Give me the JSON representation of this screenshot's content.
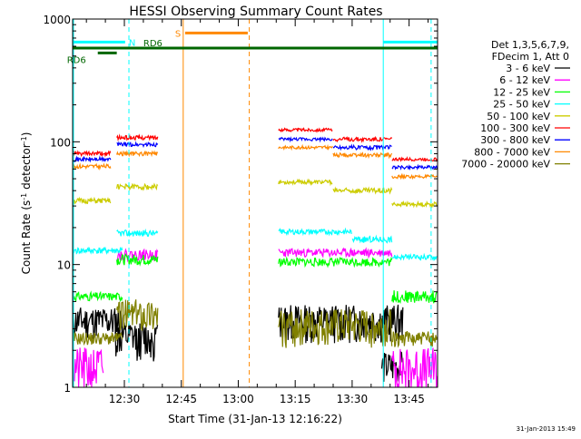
{
  "chart_data": {
    "type": "line",
    "title": "HESSI Observing Summary Count Rates",
    "xlabel": "Start Time (31-Jan-13 12:16:22)",
    "ylabel": "Count Rate (s⁻¹ detector⁻¹)",
    "ylabel_parts": [
      "Count Rate (s",
      "-1",
      " detector",
      "-1",
      ")"
    ],
    "y_scale": "log",
    "ylim": [
      1,
      1000
    ],
    "xlim_minutes": [
      16.37,
      112.5
    ],
    "xticks": [
      {
        "label": "12:30",
        "t": 30
      },
      {
        "label": "12:45",
        "t": 45
      },
      {
        "label": "13:00",
        "t": 60
      },
      {
        "label": "13:15",
        "t": 75
      },
      {
        "label": "13:30",
        "t": 90
      },
      {
        "label": "13:45",
        "t": 105
      }
    ],
    "yticks": [
      {
        "label": "1",
        "v": 1
      },
      {
        "label": "10",
        "v": 10
      },
      {
        "label": "100",
        "v": 100
      },
      {
        "label": "1000",
        "v": 1000
      }
    ],
    "legend_header": [
      "Det 1,3,5,6,7,9,",
      "FDecim 1, Att 0"
    ],
    "legend_position": "right",
    "footer": "31-Jan-2013 15:49",
    "series": [
      {
        "name": "3 - 6 keV",
        "color": "#000000",
        "segments": [
          {
            "t0": 16.5,
            "t1": 29.5,
            "v": 3.5,
            "jitter": 0.3,
            "seed": 11
          },
          {
            "t0": 27.6,
            "t1": 38.8,
            "v": 2.5,
            "jitter": 0.35,
            "seed": 12
          },
          {
            "t0": 70.6,
            "t1": 103.5,
            "v": 3.5,
            "jitter": 0.35,
            "seed": 13
          },
          {
            "t0": 97.8,
            "t1": 103.3,
            "v": 1.5,
            "jitter": 0.3,
            "seed": 14
          }
        ]
      },
      {
        "name": "6 - 12 keV",
        "color": "#ff00ff",
        "segments": [
          {
            "t0": 16.5,
            "t1": 24.5,
            "v": 1.45,
            "jitter": 0.45,
            "seed": 21
          },
          {
            "t0": 28.0,
            "t1": 38.8,
            "v": 12,
            "jitter": 0.1,
            "seed": 22
          },
          {
            "t0": 70.6,
            "t1": 100.5,
            "v": 12.5,
            "jitter": 0.08,
            "seed": 23
          },
          {
            "t0": 100.5,
            "t1": 112.5,
            "v": 1.45,
            "jitter": 0.45,
            "seed": 24
          }
        ]
      },
      {
        "name": "12 - 25 keV",
        "color": "#00ff00",
        "segments": [
          {
            "t0": 16.5,
            "t1": 29.5,
            "v": 5.5,
            "jitter": 0.08,
            "seed": 31
          },
          {
            "t0": 28.0,
            "t1": 38.8,
            "v": 11,
            "jitter": 0.1,
            "seed": 32
          },
          {
            "t0": 70.6,
            "t1": 100.5,
            "v": 10.5,
            "jitter": 0.08,
            "seed": 33
          },
          {
            "t0": 100.5,
            "t1": 112.5,
            "v": 5.5,
            "jitter": 0.12,
            "seed": 34
          }
        ]
      },
      {
        "name": "25 - 50 keV",
        "color": "#00ffff",
        "segments": [
          {
            "t0": 16.5,
            "t1": 29.5,
            "v": 13,
            "jitter": 0.06,
            "seed": 41
          },
          {
            "t0": 28.0,
            "t1": 38.8,
            "v": 18,
            "jitter": 0.06,
            "seed": 42
          },
          {
            "t0": 70.6,
            "t1": 90.0,
            "v": 18.5,
            "jitter": 0.05,
            "seed": 43
          },
          {
            "t0": 90.0,
            "t1": 100.5,
            "v": 16,
            "jitter": 0.06,
            "seed": 44
          },
          {
            "t0": 100.5,
            "t1": 112.5,
            "v": 11.5,
            "jitter": 0.05,
            "seed": 45
          }
        ]
      },
      {
        "name": "50 - 100 keV",
        "color": "#cccc00",
        "segments": [
          {
            "t0": 16.5,
            "t1": 26.5,
            "v": 33,
            "jitter": 0.05,
            "seed": 51
          },
          {
            "t0": 28.0,
            "t1": 38.8,
            "v": 43,
            "jitter": 0.05,
            "seed": 52
          },
          {
            "t0": 70.6,
            "t1": 85.0,
            "v": 47,
            "jitter": 0.04,
            "seed": 53
          },
          {
            "t0": 85.0,
            "t1": 100.5,
            "v": 40,
            "jitter": 0.05,
            "seed": 54
          },
          {
            "t0": 100.5,
            "t1": 112.5,
            "v": 31,
            "jitter": 0.04,
            "seed": 55
          }
        ]
      },
      {
        "name": "100 - 300 keV",
        "color": "#ff0000",
        "segments": [
          {
            "t0": 16.5,
            "t1": 26.5,
            "v": 80,
            "jitter": 0.04,
            "seed": 61
          },
          {
            "t0": 28.0,
            "t1": 38.8,
            "v": 108,
            "jitter": 0.04,
            "seed": 62
          },
          {
            "t0": 70.6,
            "t1": 85.0,
            "v": 125,
            "jitter": 0.03,
            "seed": 63
          },
          {
            "t0": 85.0,
            "t1": 100.5,
            "v": 105,
            "jitter": 0.04,
            "seed": 64
          },
          {
            "t0": 100.5,
            "t1": 112.5,
            "v": 72,
            "jitter": 0.03,
            "seed": 65
          }
        ]
      },
      {
        "name": "300 - 800 keV",
        "color": "#0000ff",
        "segments": [
          {
            "t0": 16.5,
            "t1": 26.5,
            "v": 72,
            "jitter": 0.04,
            "seed": 71
          },
          {
            "t0": 28.0,
            "t1": 38.8,
            "v": 95,
            "jitter": 0.04,
            "seed": 72
          },
          {
            "t0": 70.6,
            "t1": 85.0,
            "v": 105,
            "jitter": 0.03,
            "seed": 73
          },
          {
            "t0": 85.0,
            "t1": 100.5,
            "v": 90,
            "jitter": 0.04,
            "seed": 74
          },
          {
            "t0": 100.5,
            "t1": 112.5,
            "v": 62,
            "jitter": 0.03,
            "seed": 75
          }
        ]
      },
      {
        "name": "800 - 7000 keV",
        "color": "#ff8800",
        "segments": [
          {
            "t0": 16.5,
            "t1": 26.5,
            "v": 63,
            "jitter": 0.04,
            "seed": 81
          },
          {
            "t0": 28.0,
            "t1": 38.8,
            "v": 80,
            "jitter": 0.04,
            "seed": 82
          },
          {
            "t0": 70.6,
            "t1": 85.0,
            "v": 90,
            "jitter": 0.03,
            "seed": 83
          },
          {
            "t0": 85.0,
            "t1": 100.5,
            "v": 78,
            "jitter": 0.04,
            "seed": 84
          },
          {
            "t0": 100.5,
            "t1": 112.5,
            "v": 52,
            "jitter": 0.03,
            "seed": 85
          }
        ]
      },
      {
        "name": "7000 - 20000 keV",
        "color": "#808000",
        "segments": [
          {
            "t0": 16.5,
            "t1": 29.5,
            "v": 2.5,
            "jitter": 0.12,
            "seed": 91
          },
          {
            "t0": 28.0,
            "t1": 38.8,
            "v": 4.0,
            "jitter": 0.3,
            "seed": 92
          },
          {
            "t0": 70.6,
            "t1": 100.5,
            "v": 3.2,
            "jitter": 0.35,
            "seed": 93
          },
          {
            "t0": 100.5,
            "t1": 112.5,
            "v": 2.5,
            "jitter": 0.15,
            "seed": 94
          }
        ]
      }
    ],
    "markers": [
      {
        "label": "N",
        "color": "#00ffff",
        "bar": [
          16.37,
          30.2
        ],
        "bar_v": 650,
        "lines": [
          {
            "t": 16.6,
            "style": "solid"
          },
          {
            "t": 31.2,
            "style": "dashed"
          },
          {
            "t": 98.2,
            "style": "solid"
          },
          {
            "t": 110.8,
            "style": "dashed"
          }
        ]
      },
      {
        "label": "",
        "color": "#00ffff",
        "bar": [
          98.2,
          112.5
        ],
        "bar_v": 650,
        "lines": []
      },
      {
        "label": "S",
        "color": "#ff8800",
        "bar": [
          46.0,
          62.5
        ],
        "bar_v": 770,
        "lines": [
          {
            "t": 45.5,
            "style": "solid"
          },
          {
            "t": 62.9,
            "style": "dashed"
          }
        ]
      },
      {
        "label": "RD6",
        "color": "#006600",
        "bar": [
          16.37,
          112.5
        ],
        "bar_v": 580,
        "lines": []
      },
      {
        "label": "RD6",
        "color": "#006600",
        "bar": [
          23.0,
          28.0
        ],
        "bar_v": 530,
        "lines": []
      }
    ]
  }
}
